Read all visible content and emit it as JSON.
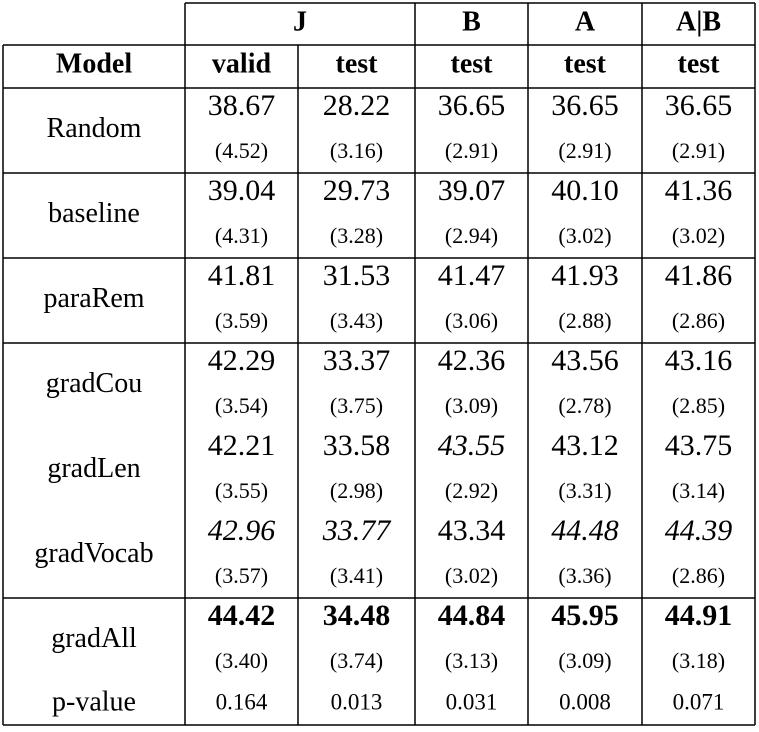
{
  "table": {
    "column_groups": [
      "J",
      "B",
      "A",
      "A|B"
    ],
    "column_labels": [
      "Model",
      "valid",
      "test",
      "test",
      "test",
      "test"
    ],
    "sections": [
      [
        {
          "model": "Random",
          "values": [
            "38.67",
            "28.22",
            "36.65",
            "36.65",
            "36.65"
          ],
          "sds": [
            "(4.52)",
            "(3.16)",
            "(2.91)",
            "(2.91)",
            "(2.91)"
          ]
        }
      ],
      [
        {
          "model": "baseline",
          "values": [
            "39.04",
            "29.73",
            "39.07",
            "40.10",
            "41.36"
          ],
          "sds": [
            "(4.31)",
            "(3.28)",
            "(2.94)",
            "(3.02)",
            "(3.02)"
          ]
        }
      ],
      [
        {
          "model": "paraRem",
          "values": [
            "41.81",
            "31.53",
            "41.47",
            "41.93",
            "41.86"
          ],
          "sds": [
            "(3.59)",
            "(3.43)",
            "(3.06)",
            "(2.88)",
            "(2.86)"
          ]
        }
      ],
      [
        {
          "model": "gradCou",
          "values": [
            "42.29",
            "33.37",
            "42.36",
            "43.56",
            "43.16"
          ],
          "sds": [
            "(3.54)",
            "(3.75)",
            "(3.09)",
            "(2.78)",
            "(2.85)"
          ]
        },
        {
          "model": "gradLen",
          "values": [
            "42.21",
            "33.58",
            "43.55",
            "43.12",
            "43.75"
          ],
          "sds": [
            "(3.55)",
            "(2.98)",
            "(2.92)",
            "(3.31)",
            "(3.14)"
          ],
          "italic": [
            2
          ]
        },
        {
          "model": "gradVocab",
          "values": [
            "42.96",
            "33.77",
            "43.34",
            "44.48",
            "44.39"
          ],
          "sds": [
            "(3.57)",
            "(3.41)",
            "(3.02)",
            "(3.36)",
            "(2.86)"
          ],
          "italic": [
            0,
            1,
            3,
            4
          ]
        }
      ],
      [
        {
          "model": "gradAll",
          "values": [
            "44.42",
            "34.48",
            "44.84",
            "45.95",
            "44.91"
          ],
          "sds": [
            "(3.40)",
            "(3.74)",
            "(3.13)",
            "(3.09)",
            "(3.18)"
          ],
          "bold": true
        },
        {
          "model": "p-value",
          "values": [
            "0.164",
            "0.013",
            "0.031",
            "0.008",
            "0.071"
          ]
        }
      ]
    ]
  }
}
